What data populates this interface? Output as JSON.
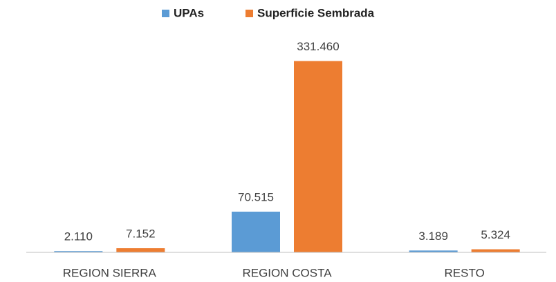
{
  "chart_data": {
    "type": "bar",
    "categories": [
      "REGION SIERRA",
      "REGION COSTA",
      "RESTO"
    ],
    "series": [
      {
        "name": "UPAs",
        "color": "#5b9bd5",
        "values": [
          2110,
          70515,
          3189
        ],
        "value_labels": [
          "2.110",
          "70.515",
          "3.189"
        ]
      },
      {
        "name": "Superficie Sembrada",
        "color": "#ed7d31",
        "values": [
          7152,
          331460,
          5324
        ],
        "value_labels": [
          "7.152",
          "331.460",
          "5.324"
        ]
      }
    ],
    "ylim": [
      0,
      350000
    ],
    "legend": "top"
  }
}
